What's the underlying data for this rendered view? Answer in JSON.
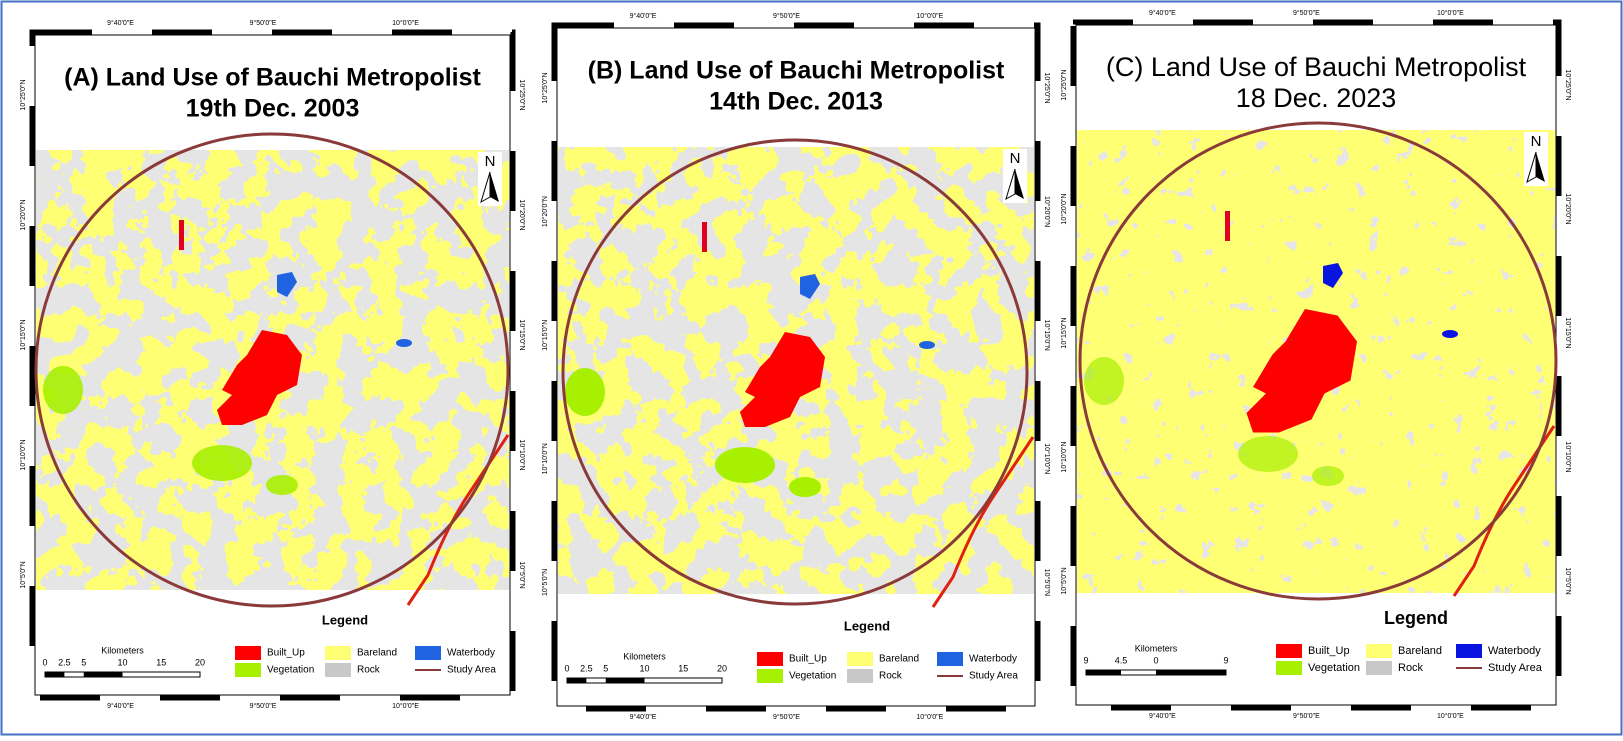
{
  "maps": [
    {
      "title": [
        "(A) Land Use of Bauchi Metropolist",
        "19th Dec. 2003"
      ],
      "north": "N",
      "legend_title": "Legend",
      "legend": [
        "Built_Up",
        "Vegetation",
        "Bareland",
        "Rock",
        "Waterbody",
        "Study Area"
      ],
      "scale_title": "Kilometers",
      "scale_ticks": [
        "0",
        "2.5",
        "5",
        "10",
        "15",
        "20"
      ],
      "lon_labels": [
        "9°40'0\"E",
        "9°50'0\"E",
        "10°0'0\"E"
      ],
      "lat_labels": [
        "10°25'0\"N",
        "10°20'0\"N",
        "10°15'0\"N",
        "10°10'0\"N",
        "10°5'0\"N"
      ]
    },
    {
      "title": [
        "(B) Land Use of Bauchi Metropolist",
        "14th Dec. 2013"
      ],
      "north": "N",
      "legend_title": "Legend",
      "legend": [
        "Built_Up",
        "Vegetation",
        "Bareland",
        "Rock",
        "Waterbody",
        "Study Area"
      ],
      "scale_title": "Kilometers",
      "scale_ticks": [
        "0",
        "2.5",
        "5",
        "10",
        "15",
        "20"
      ],
      "lon_labels": [
        "9°40'0\"E",
        "9°50'0\"E",
        "10°0'0\"E"
      ],
      "lat_labels": [
        "10°25'0\"N",
        "10°20'0\"N",
        "10°15'0\"N",
        "10°10'0\"N",
        "10°5'0\"N"
      ]
    },
    {
      "title": [
        "(C) Land Use of Bauchi Metropolist",
        "18 Dec. 2023"
      ],
      "north": "N",
      "legend_title": "Legend",
      "legend": [
        "Built_Up",
        "Vegetation",
        "Bareland",
        "Rock",
        "Waterbody",
        "Study Area"
      ],
      "scale_title": "Kilometers",
      "scale_ticks": [
        "9",
        "4.5",
        "0",
        "9"
      ],
      "lon_labels": [
        "9°40'0\"E",
        "9°50'0\"E",
        "10°0'0\"E"
      ],
      "lat_labels": [
        "10°25'0\"N",
        "10°20'0\"N",
        "10°15'0\"N",
        "10°10'0\"N",
        "10°5'0\"N"
      ]
    }
  ]
}
